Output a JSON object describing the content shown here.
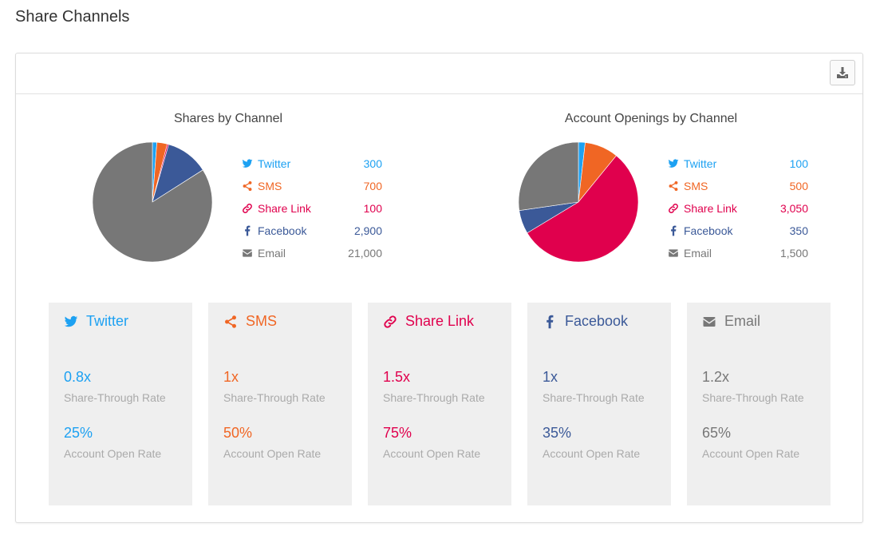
{
  "page_title": "Share Channels",
  "colors": {
    "twitter": "#1da1f2",
    "sms": "#f06624",
    "share_link": "#e0004d",
    "facebook": "#3b5998",
    "email": "#777777"
  },
  "icons": {
    "download": "download-icon",
    "twitter": "twitter-icon",
    "sms": "share-icon",
    "share_link": "link-icon",
    "facebook": "facebook-icon",
    "email": "envelope-icon"
  },
  "chart_data": [
    {
      "type": "pie",
      "title": "Shares by Channel",
      "categories": [
        "Twitter",
        "SMS",
        "Share Link",
        "Facebook",
        "Email"
      ],
      "values": [
        300,
        700,
        100,
        2900,
        21000
      ],
      "value_labels": [
        "300",
        "700",
        "100",
        "2,900",
        "21,000"
      ],
      "legend": "right"
    },
    {
      "type": "pie",
      "title": "Account Openings by Channel",
      "categories": [
        "Twitter",
        "SMS",
        "Share Link",
        "Facebook",
        "Email"
      ],
      "values": [
        100,
        500,
        3050,
        350,
        1500
      ],
      "value_labels": [
        "100",
        "500",
        "3,050",
        "350",
        "1,500"
      ],
      "legend": "right"
    }
  ],
  "cards": [
    {
      "label": "Twitter",
      "share_through_rate": "0.8x",
      "share_through_label": "Share-Through Rate",
      "open_rate": "25%",
      "open_rate_label": "Account Open Rate"
    },
    {
      "label": "SMS",
      "share_through_rate": "1x",
      "share_through_label": "Share-Through Rate",
      "open_rate": "50%",
      "open_rate_label": "Account Open Rate"
    },
    {
      "label": "Share Link",
      "share_through_rate": "1.5x",
      "share_through_label": "Share-Through Rate",
      "open_rate": "75%",
      "open_rate_label": "Account Open Rate"
    },
    {
      "label": "Facebook",
      "share_through_rate": "1x",
      "share_through_label": "Share-Through Rate",
      "open_rate": "35%",
      "open_rate_label": "Account Open Rate"
    },
    {
      "label": "Email",
      "share_through_rate": "1.2x",
      "share_through_label": "Share-Through Rate",
      "open_rate": "65%",
      "open_rate_label": "Account Open Rate"
    }
  ]
}
